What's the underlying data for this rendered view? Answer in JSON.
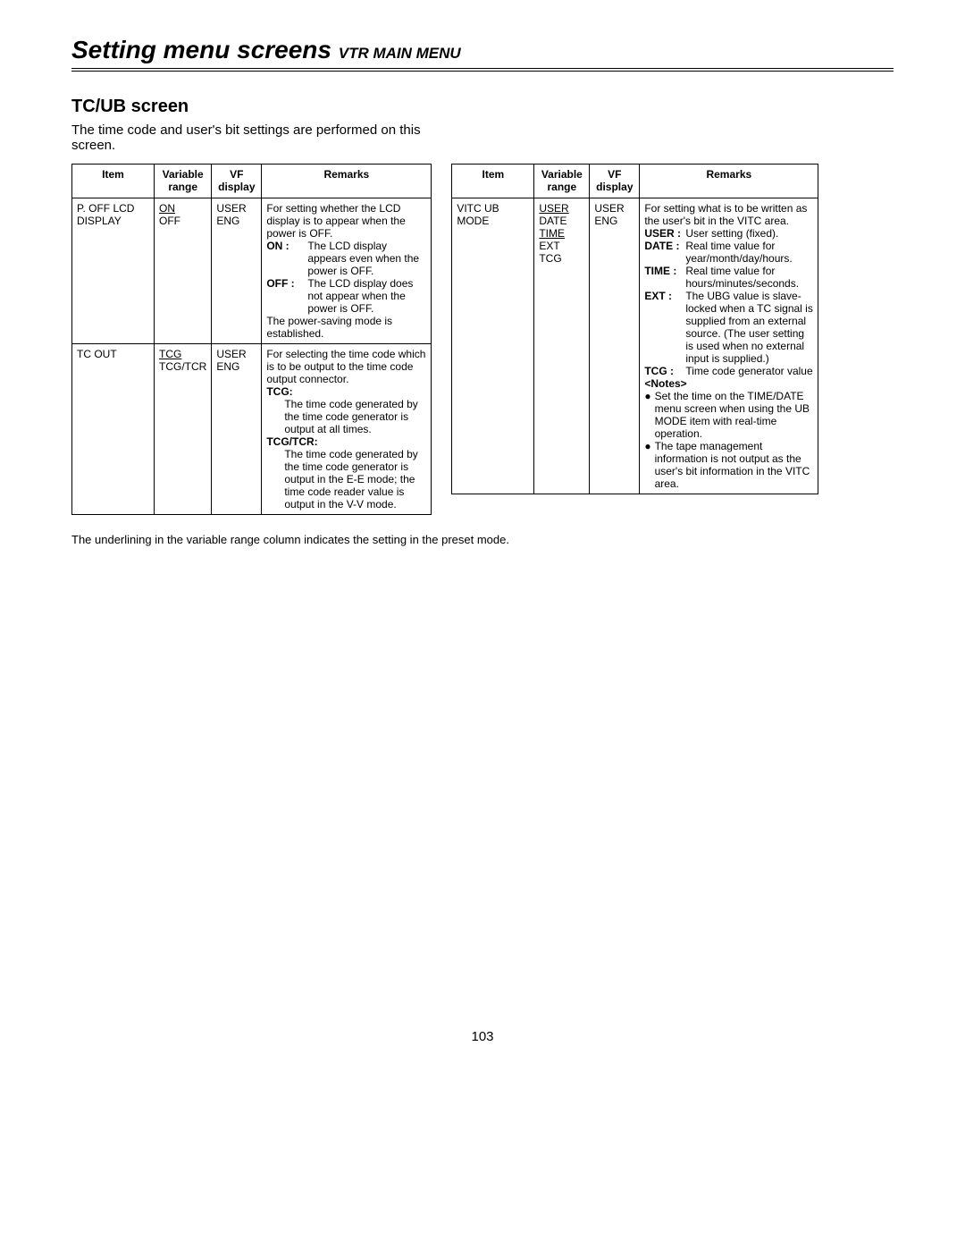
{
  "header": {
    "title_main": "Setting menu screens",
    "title_sub": "VTR MAIN MENU"
  },
  "section": {
    "title": "TC/UB screen",
    "description": "The time code and user's bit settings are performed on this screen."
  },
  "columns": {
    "item": "Item",
    "range_line1": "Variable",
    "range_line2": "range",
    "vf_line1": "VF",
    "vf_line2": "display",
    "remarks": "Remarks"
  },
  "left": {
    "row1": {
      "item_l1": "P. OFF LCD",
      "item_l2": "DISPLAY",
      "range_on": "ON",
      "range_off": "OFF",
      "vf_l1": "USER",
      "vf_l2": "ENG",
      "rem_intro": "For setting whether the LCD display is to appear when the power is OFF.",
      "on_label": "ON",
      "on_text": "The LCD display appears even when the power is OFF.",
      "off_label": "OFF",
      "off_text": "The LCD display does not appear when the power is OFF.",
      "rem_tail": "The power-saving mode is established."
    },
    "row2": {
      "item": "TC OUT",
      "range_tcg": "TCG",
      "range_tcgtcr": "TCG/TCR",
      "vf_l1": "USER",
      "vf_l2": "ENG",
      "rem_intro": "For selecting the time code which is to be output to the time code output connector.",
      "tcg_hdr": "TCG:",
      "tcg_text": "The time code generated by the time code generator is output at all times.",
      "tcgtcr_hdr": "TCG/TCR:",
      "tcgtcr_text": "The time code generated by the time code generator is output in the E-E mode; the time code reader value is output in the V-V mode."
    }
  },
  "right": {
    "row1": {
      "item": "VITC UB MODE",
      "range_user": "USER",
      "range_date": "DATE",
      "range_time": "TIME",
      "range_ext": "EXT",
      "range_tcg": "TCG",
      "vf_l1": "USER",
      "vf_l2": "ENG",
      "rem_intro": "For setting what is to be written as the user's bit in the VITC area.",
      "user_label": "USER",
      "user_text": "User setting (fixed).",
      "date_label": "DATE",
      "date_text": "Real time value for year/month/day/hours.",
      "time_label": "TIME",
      "time_text": "Real time value for hours/minutes/seconds.",
      "ext_label": "EXT",
      "ext_text": "The UBG value is slave-locked when a TC signal is supplied from an external source. (The user setting is used when no external input is supplied.)",
      "tcg_label": "TCG",
      "tcg_text": "Time code generator value",
      "notes_hdr": "<Notes>",
      "note1": "Set the time on the TIME/DATE menu screen when using the UB MODE item with real-time operation.",
      "note2": "The tape management information is not output as the user's bit information in the VITC area."
    }
  },
  "footnote": "The underlining in the variable range column indicates the setting in the preset mode.",
  "page_number": "103"
}
